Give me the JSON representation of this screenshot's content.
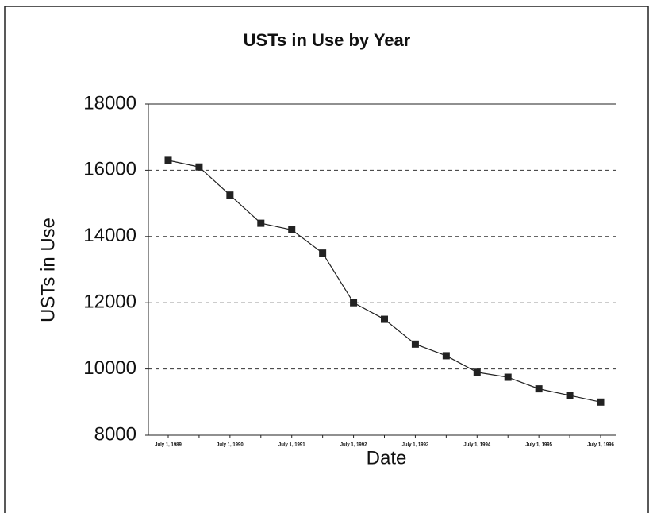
{
  "chart_data": {
    "type": "line",
    "title": "USTs in Use by Year",
    "x_label": "Date",
    "y_label": "USTs in Use",
    "categories": [
      "July 1, 1989",
      null,
      "July 1, 1990",
      null,
      "July 1, 1991",
      null,
      "July 1, 1992",
      null,
      "July 1, 1993",
      null,
      "July 1, 1994",
      null,
      "July 1, 1995",
      null,
      "July 1, 1996"
    ],
    "values": [
      16300,
      16100,
      15250,
      14400,
      14200,
      13500,
      12000,
      11500,
      10750,
      10400,
      9900,
      9750,
      9400,
      9200,
      9000
    ],
    "color": "#222222",
    "ylim": [
      8000,
      18000
    ],
    "yticks": [
      8000,
      10000,
      12000,
      14000,
      16000,
      18000
    ],
    "grid": true
  }
}
